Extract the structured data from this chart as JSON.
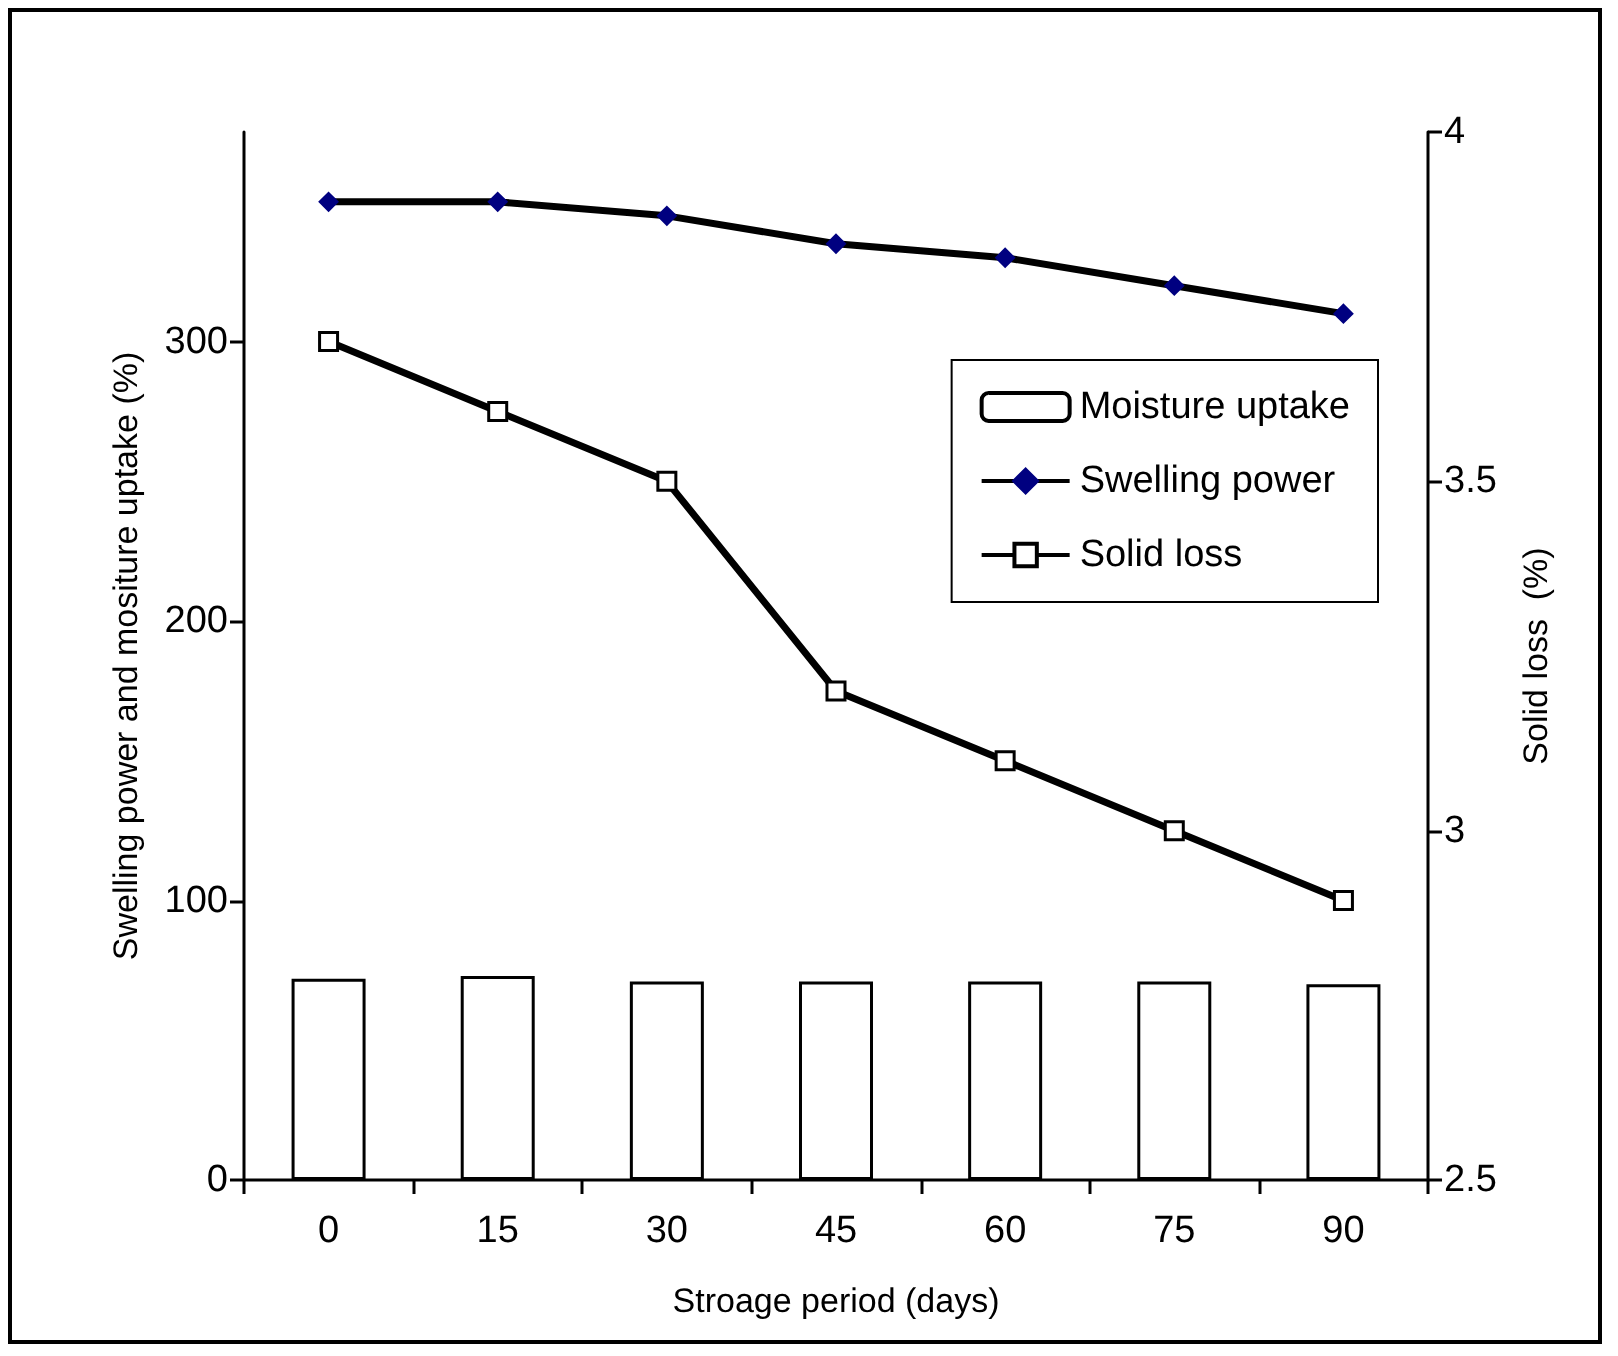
{
  "chart_data": {
    "type": "bar",
    "xlabel": "Stroage period (days)",
    "ylabel": "Swelling power and mositure uptake (%)",
    "y2label": "Solid loss  (%)",
    "categories": [
      "0",
      "15",
      "30",
      "45",
      "60",
      "75",
      "90"
    ],
    "series": [
      {
        "name": "Moisture uptake",
        "color": "#ffffff",
        "values": [
          72,
          73,
          71,
          71,
          71,
          71,
          70
        ]
      },
      {
        "name": "Swelling power",
        "type": "line",
        "color": "#000080",
        "marker": "diamond",
        "values": [
          350,
          350,
          345,
          335,
          330,
          320,
          310
        ]
      },
      {
        "name": "Solid loss",
        "type": "line",
        "color": "#000000",
        "marker": "square",
        "axis": "y2",
        "values": [
          3.7,
          3.6,
          3.5,
          3.2,
          3.1,
          3.0,
          2.9
        ]
      }
    ],
    "ylim": [
      0,
      375
    ],
    "yticks": [
      0,
      100,
      200,
      300
    ],
    "y2lim": [
      2.5,
      4
    ],
    "y2ticks": [
      2.5,
      3,
      3.5,
      4
    ],
    "grid": false,
    "legend": "right"
  }
}
